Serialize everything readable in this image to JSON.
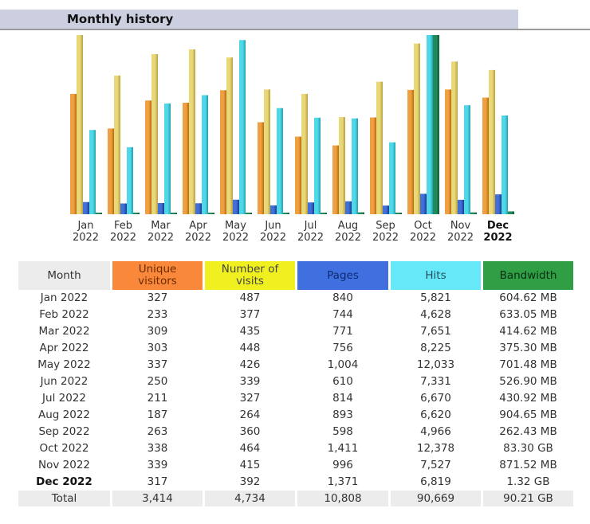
{
  "header": {
    "title": "Monthly history"
  },
  "colors": {
    "unique_visitors": "#f0a040",
    "visits": "#e8d878",
    "pages": "#4070d8",
    "hits": "#50d8e8",
    "bandwidth": "#1f8a5a"
  },
  "chart_data": {
    "type": "bar",
    "title": "Monthly history",
    "categories": [
      {
        "month": "Jan",
        "year": "2022",
        "bold": false
      },
      {
        "month": "Feb",
        "year": "2022",
        "bold": false
      },
      {
        "month": "Mar",
        "year": "2022",
        "bold": false
      },
      {
        "month": "Apr",
        "year": "2022",
        "bold": false
      },
      {
        "month": "May",
        "year": "2022",
        "bold": false
      },
      {
        "month": "Jun",
        "year": "2022",
        "bold": false
      },
      {
        "month": "Jul",
        "year": "2022",
        "bold": false
      },
      {
        "month": "Aug",
        "year": "2022",
        "bold": false
      },
      {
        "month": "Sep",
        "year": "2022",
        "bold": false
      },
      {
        "month": "Oct",
        "year": "2022",
        "bold": false
      },
      {
        "month": "Nov",
        "year": "2022",
        "bold": false
      },
      {
        "month": "Dec",
        "year": "2022",
        "bold": true
      }
    ],
    "series": [
      {
        "name": "Unique visitors",
        "values": [
          327,
          233,
          309,
          303,
          337,
          250,
          211,
          187,
          263,
          338,
          339,
          317
        ]
      },
      {
        "name": "Number of visits",
        "values": [
          487,
          377,
          435,
          448,
          426,
          339,
          327,
          264,
          360,
          464,
          415,
          392
        ]
      },
      {
        "name": "Pages",
        "values": [
          840,
          744,
          771,
          756,
          1004,
          610,
          814,
          893,
          598,
          1411,
          996,
          1371
        ]
      },
      {
        "name": "Hits",
        "values": [
          5821,
          4628,
          7651,
          8225,
          12033,
          7331,
          6670,
          6620,
          4966,
          12378,
          7527,
          6819
        ]
      },
      {
        "name": "Bandwidth (MB)",
        "values": [
          604.62,
          633.05,
          414.62,
          375.3,
          701.48,
          526.9,
          430.92,
          904.65,
          262.43,
          85299.2,
          871.52,
          1351.68
        ]
      }
    ],
    "xlabel": "",
    "ylabel": ""
  },
  "table": {
    "headers": {
      "month": "Month",
      "unique_visitors": "Unique visitors",
      "visits": "Number of visits",
      "pages": "Pages",
      "hits": "Hits",
      "bandwidth": "Bandwidth"
    },
    "rows": [
      {
        "month": "Jan 2022",
        "uv": "327",
        "visits": "487",
        "pages": "840",
        "hits": "5,821",
        "bw": "604.62 MB"
      },
      {
        "month": "Feb 2022",
        "uv": "233",
        "visits": "377",
        "pages": "744",
        "hits": "4,628",
        "bw": "633.05 MB"
      },
      {
        "month": "Mar 2022",
        "uv": "309",
        "visits": "435",
        "pages": "771",
        "hits": "7,651",
        "bw": "414.62 MB"
      },
      {
        "month": "Apr 2022",
        "uv": "303",
        "visits": "448",
        "pages": "756",
        "hits": "8,225",
        "bw": "375.30 MB"
      },
      {
        "month": "May 2022",
        "uv": "337",
        "visits": "426",
        "pages": "1,004",
        "hits": "12,033",
        "bw": "701.48 MB"
      },
      {
        "month": "Jun 2022",
        "uv": "250",
        "visits": "339",
        "pages": "610",
        "hits": "7,331",
        "bw": "526.90 MB"
      },
      {
        "month": "Jul 2022",
        "uv": "211",
        "visits": "327",
        "pages": "814",
        "hits": "6,670",
        "bw": "430.92 MB"
      },
      {
        "month": "Aug 2022",
        "uv": "187",
        "visits": "264",
        "pages": "893",
        "hits": "6,620",
        "bw": "904.65 MB"
      },
      {
        "month": "Sep 2022",
        "uv": "263",
        "visits": "360",
        "pages": "598",
        "hits": "4,966",
        "bw": "262.43 MB"
      },
      {
        "month": "Oct 2022",
        "uv": "338",
        "visits": "464",
        "pages": "1,411",
        "hits": "12,378",
        "bw": "83.30 GB"
      },
      {
        "month": "Nov 2022",
        "uv": "339",
        "visits": "415",
        "pages": "996",
        "hits": "7,527",
        "bw": "871.52 MB"
      },
      {
        "month": "Dec 2022",
        "uv": "317",
        "visits": "392",
        "pages": "1,371",
        "hits": "6,819",
        "bw": "1.32 GB"
      }
    ],
    "total": {
      "month": "Total",
      "uv": "3,414",
      "visits": "4,734",
      "pages": "10,808",
      "hits": "90,669",
      "bw": "90.21 GB"
    }
  }
}
